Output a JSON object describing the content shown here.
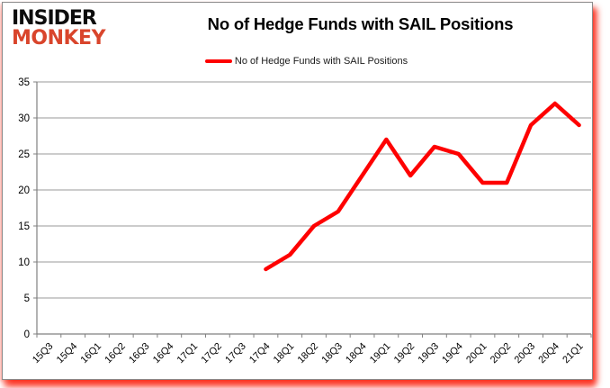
{
  "branding": {
    "line1": "INSIDER",
    "line2": "MONKEY",
    "monkey_color": "#d9452c",
    "insider_color": "#0d0d0d"
  },
  "header": {
    "title": "No of Hedge Funds with SAIL Positions"
  },
  "legend": {
    "label": "No of Hedge Funds with SAIL Positions",
    "line_color": "#fe0000"
  },
  "colors": {
    "series_red": "#fe0000",
    "gridline": "#999999",
    "axis": "#808080",
    "tick_label": "#000000",
    "frame_glow": "#fc2816"
  },
  "chart_data": {
    "type": "line",
    "title": "No of Hedge Funds with SAIL Positions",
    "categories": [
      "15Q3",
      "15Q4",
      "16Q1",
      "16Q2",
      "16Q3",
      "16Q4",
      "17Q1",
      "17Q2",
      "17Q3",
      "17Q4",
      "18Q1",
      "18Q2",
      "18Q3",
      "18Q4",
      "19Q1",
      "19Q2",
      "19Q3",
      "19Q4",
      "20Q1",
      "20Q2",
      "20Q3",
      "20Q4",
      "21Q1"
    ],
    "series": [
      {
        "name": "No of Hedge Funds with SAIL Positions",
        "color": "#fe0000",
        "values": [
          null,
          null,
          null,
          null,
          null,
          null,
          null,
          null,
          null,
          9,
          11,
          15,
          17,
          22,
          27,
          22,
          26,
          25,
          21,
          21,
          29,
          32,
          29
        ]
      }
    ],
    "xlabel": "",
    "ylabel": "",
    "ylim": [
      0,
      35
    ],
    "yticks": [
      0,
      5,
      10,
      15,
      20,
      25,
      30,
      35
    ],
    "grid": true,
    "legend_position": "top",
    "x_tick_rotation_deg": 45
  }
}
